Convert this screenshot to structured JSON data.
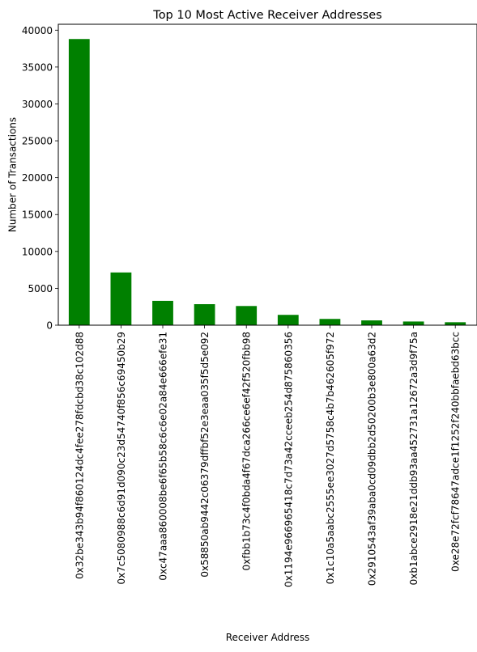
{
  "chart_data": {
    "type": "bar",
    "title": "Top 10 Most Active Receiver Addresses",
    "xlabel": "Receiver Address",
    "ylabel": "Number of Transactions",
    "categories": [
      "0x32be343b94f860124dc4fee278fdcbd38c102d88",
      "0x7c5080988c6d91d090c23d54740f856c69450b29",
      "0xc47aaa860008be6f65b58c6c6e02a84e666efe31",
      "0x58850ab9442c06379dffbf52e3eaa035f5d5e092",
      "0xfbb1b73c4f0bda4f67dca266ce6ef42f520fbb98",
      "0x1194e966965418c7d73a42cceeb254d875860356",
      "0x1c10a5aabc2555ee3027d5758c4b7b462605f972",
      "0x2910543af39aba0cd09dbb2d50200b3e800a63d2",
      "0xb1abce2918e21ddb93aa452731a12672a3d9f75a",
      "0xe28e72fcf78647adce1f1252f240bbfaebd63bcc"
    ],
    "values": [
      38800,
      7150,
      3300,
      2850,
      2600,
      1400,
      850,
      650,
      500,
      400
    ],
    "ylim": [
      0,
      40800
    ],
    "yticks": [
      0,
      5000,
      10000,
      15000,
      20000,
      25000,
      30000,
      35000,
      40000
    ],
    "bar_color": "#008000",
    "grid": false,
    "legend": "none"
  }
}
